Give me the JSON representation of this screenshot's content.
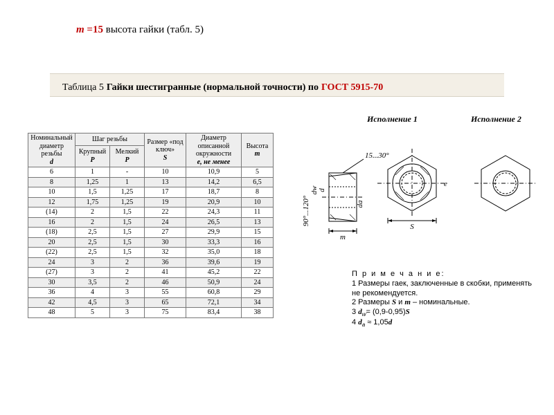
{
  "top": {
    "m": "m",
    "eq15": " =15",
    "rest": " высота гайки (табл.  5)"
  },
  "caption": {
    "label": "Таблица 5 ",
    "title": "Гайки шестигранные (нормальной точности) по ",
    "gost": "ГОСТ 5915-70"
  },
  "exec1": "Исполнение 1",
  "exec2": "Исполнение 2",
  "headers": {
    "d": "Номинальный диаметр резьбы",
    "d_it": "d",
    "pitch": "Шаг резьбы",
    "coarse": "Крупный",
    "fine": "Мелкий",
    "P1": "P",
    "P2": "P",
    "S": "Размер «под ключ»",
    "S_it": "S",
    "e": "Диаметр описанной окружности",
    "e_it": "е, не менее",
    "m": "Высота",
    "m_it": "m"
  },
  "rows": [
    [
      "6",
      "1",
      "-",
      "10",
      "10,9",
      "5"
    ],
    [
      "8",
      "1,25",
      "1",
      "13",
      "14,2",
      "6,5"
    ],
    [
      "10",
      "1,5",
      "1,25",
      "17",
      "18,7",
      "8"
    ],
    [
      "12",
      "1,75",
      "1,25",
      "19",
      "20,9",
      "10"
    ],
    [
      "(14)",
      "2",
      "1,5",
      "22",
      "24,3",
      "11"
    ],
    [
      "16",
      "2",
      "1,5",
      "24",
      "26,5",
      "13"
    ],
    [
      "(18)",
      "2,5",
      "1,5",
      "27",
      "29,9",
      "15"
    ],
    [
      "20",
      "2,5",
      "1,5",
      "30",
      "33,3",
      "16"
    ],
    [
      "(22)",
      "2,5",
      "1,5",
      "32",
      "35,0",
      "18"
    ],
    [
      "24",
      "3",
      "2",
      "36",
      "39,6",
      "19"
    ],
    [
      "(27)",
      "3",
      "2",
      "41",
      "45,2",
      "22"
    ],
    [
      "30",
      "3,5",
      "2",
      "46",
      "50,9",
      "24"
    ],
    [
      "36",
      "4",
      "3",
      "55",
      "60,8",
      "29"
    ],
    [
      "42",
      "4,5",
      "3",
      "65",
      "72,1",
      "34"
    ],
    [
      "48",
      "5",
      "3",
      "75",
      "83,4",
      "38"
    ]
  ],
  "row_bg": [
    "#ffffff",
    "#eeeeee",
    "#ffffff",
    "#eeeeee",
    "#ffffff",
    "#eeeeee",
    "#ffffff",
    "#eeeeee",
    "#ffffff",
    "#eeeeee",
    "#ffffff",
    "#eeeeee",
    "#ffffff",
    "#eeeeee",
    "#ffffff"
  ],
  "drawing": {
    "angle_label": "15...30°",
    "angle2": "90°...120°",
    "dw": "dw",
    "d": "d",
    "da": "da",
    "m": "m",
    "S": "S",
    "e": "e"
  },
  "notes": {
    "head": "П р и м е ч а н и е:",
    "l1a": "1 Размеры гаек, заключенные в скобки, применять не рекомендуется.",
    "l2a": "2 Размеры ",
    "l2b": " и ",
    "l2c": " – номинальные.",
    "S": "S",
    "m": "m",
    "l3a": "3 ",
    "dw": "d",
    "dw_sub": "w",
    "l3b": "= (0,9-0,95)",
    "Sv": "S",
    "l4a": "4 ",
    "da": "d",
    "da_sub": "a",
    "approx": "≈ 1,05",
    "dv": "d"
  }
}
